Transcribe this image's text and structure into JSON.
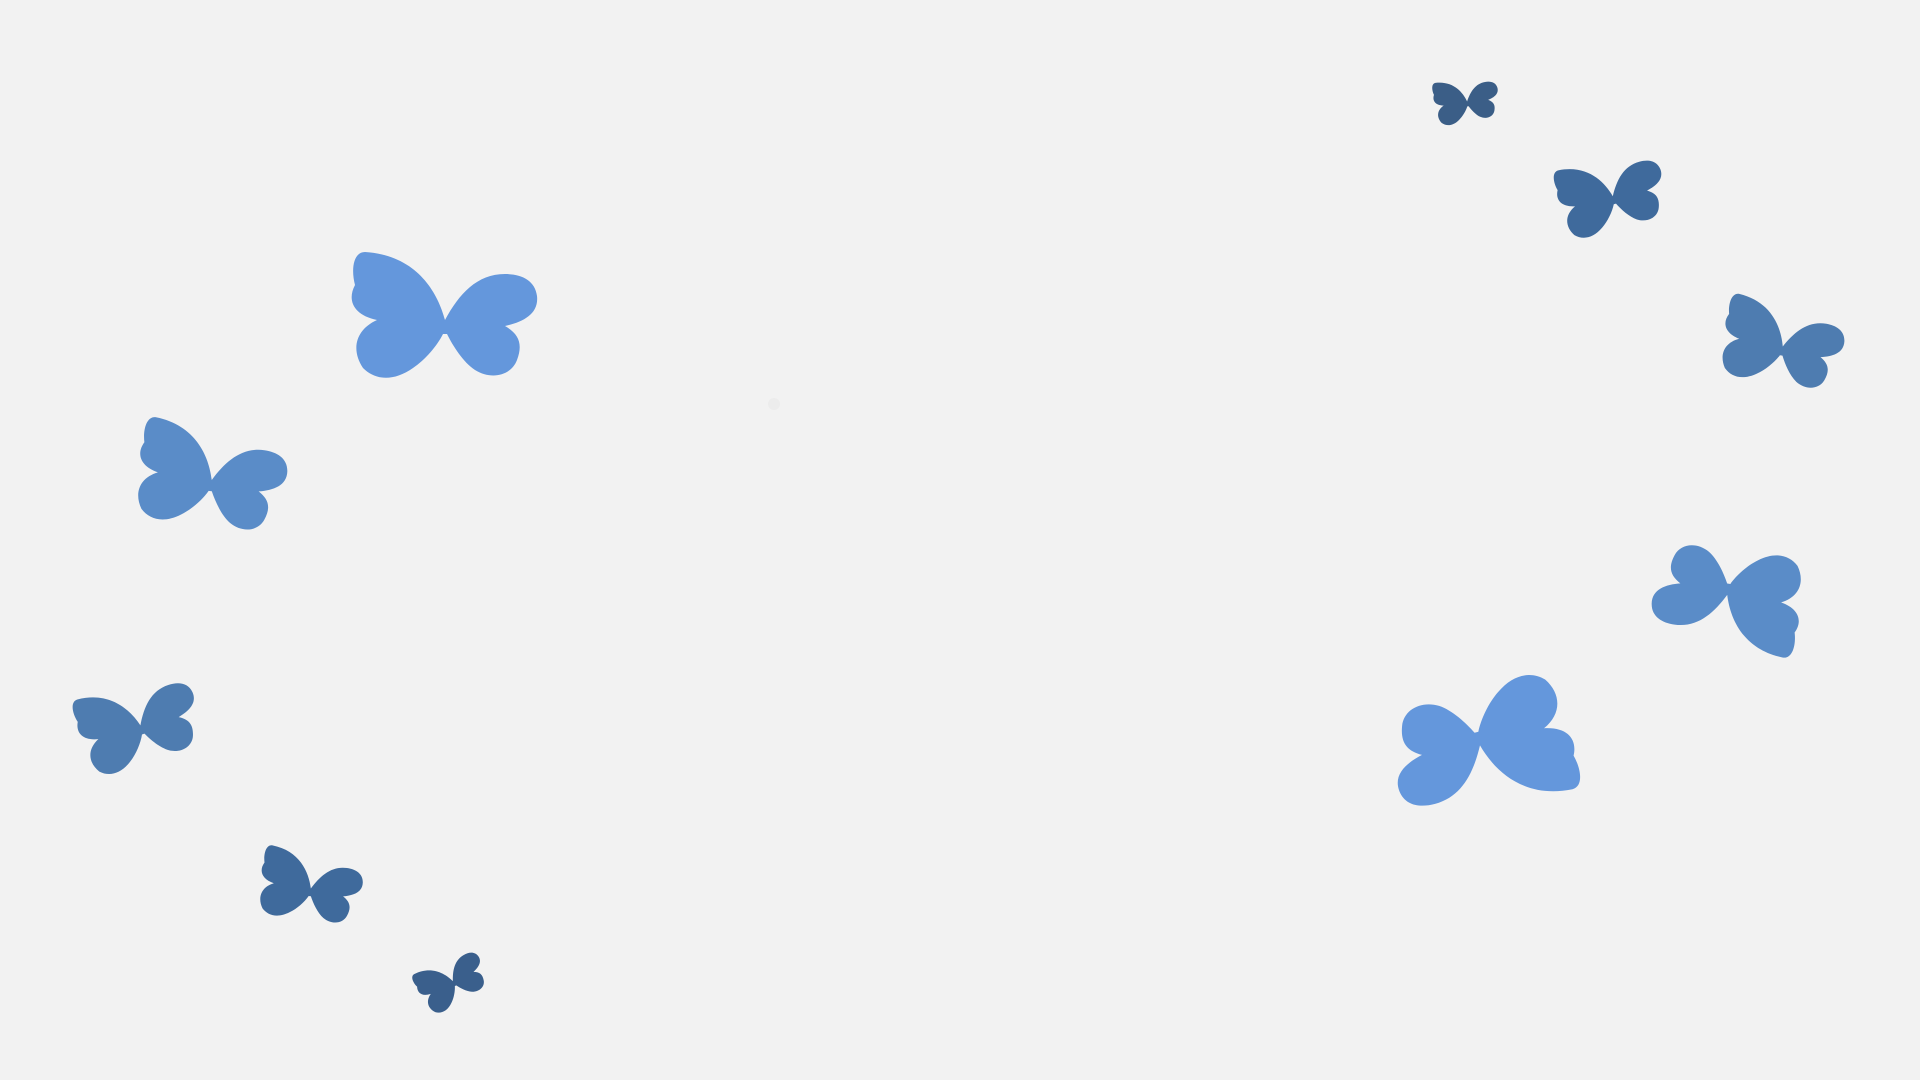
{
  "scene": {
    "background_color": "#f2f2f2",
    "description_free": true
  },
  "butterflies": [
    {
      "id": "butterfly-1",
      "color": "#6497dc",
      "icon": "butterfly-icon"
    },
    {
      "id": "butterfly-2",
      "color": "#5a8cc8",
      "icon": "butterfly-icon"
    },
    {
      "id": "butterfly-3",
      "color": "#4e7cb0",
      "icon": "butterfly-icon"
    },
    {
      "id": "butterfly-4",
      "color": "#3f6a9c",
      "icon": "butterfly-icon"
    },
    {
      "id": "butterfly-5",
      "color": "#3a5f8c",
      "icon": "butterfly-icon"
    },
    {
      "id": "butterfly-6",
      "color": "#3b5e87",
      "icon": "butterfly-icon"
    },
    {
      "id": "butterfly-7",
      "color": "#3f6a9c",
      "icon": "butterfly-icon"
    },
    {
      "id": "butterfly-8",
      "color": "#4e7cb0",
      "icon": "butterfly-icon"
    },
    {
      "id": "butterfly-9",
      "color": "#5a8cc8",
      "icon": "butterfly-icon"
    },
    {
      "id": "butterfly-10",
      "color": "#6497dc",
      "icon": "butterfly-icon"
    }
  ]
}
